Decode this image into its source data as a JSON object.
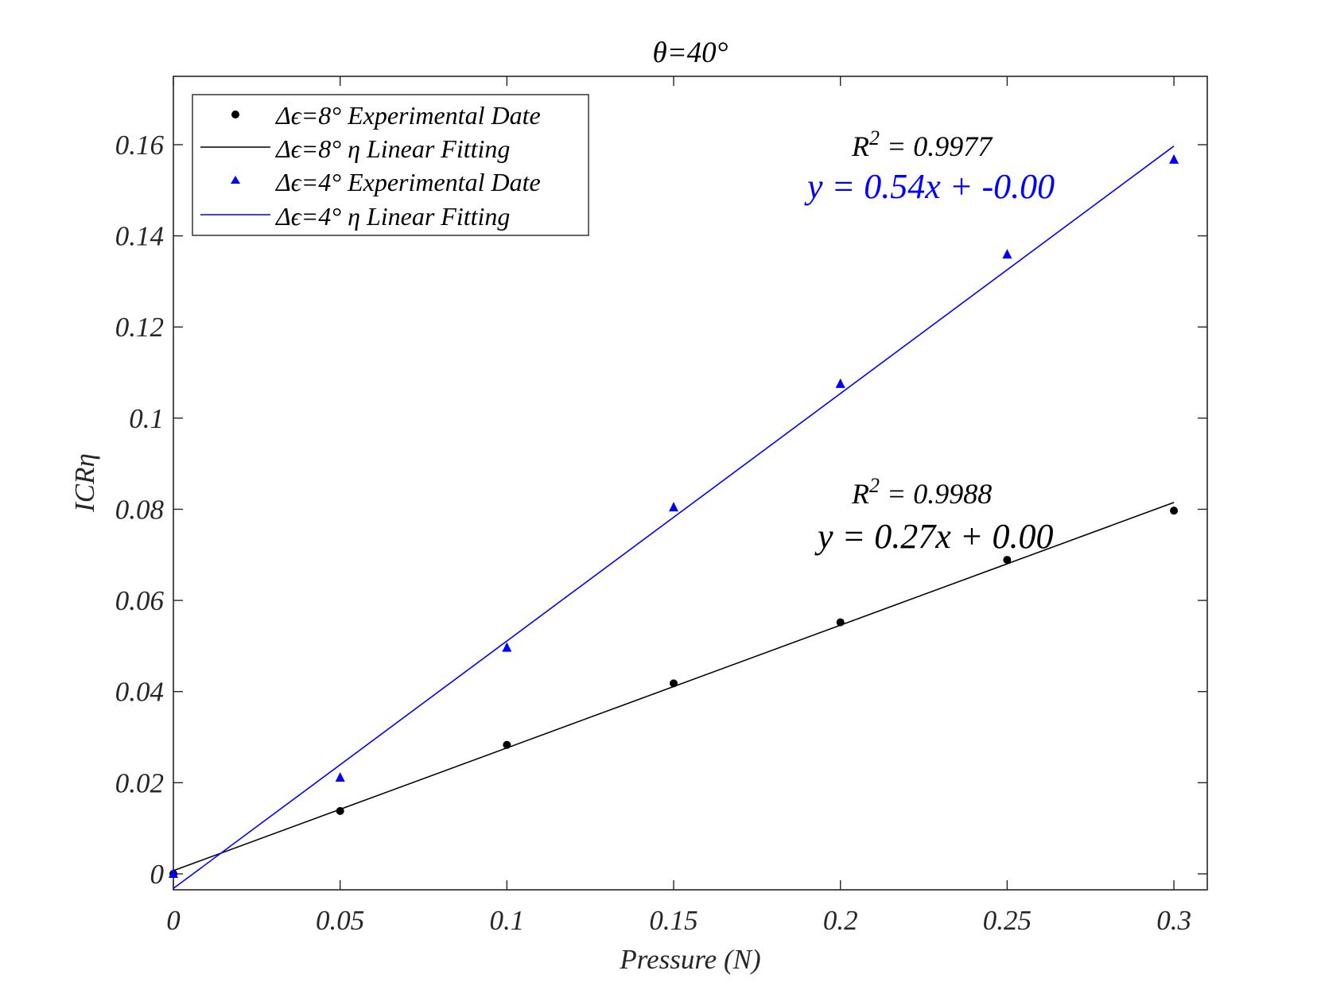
{
  "chart_data": {
    "type": "scatter",
    "title": "θ=40°",
    "xlabel": "Pressure (N)",
    "ylabel": "ICRη",
    "xlim": [
      0,
      0.31
    ],
    "ylim": [
      -0.0035,
      0.175
    ],
    "xticks": [
      0,
      0.05,
      0.1,
      0.15,
      0.2,
      0.25,
      0.3
    ],
    "xtick_labels": [
      "0",
      "0.05",
      "0.1",
      "0.15",
      "0.2",
      "0.25",
      "0.3"
    ],
    "yticks": [
      0,
      0.02,
      0.04,
      0.06,
      0.08,
      0.1,
      0.12,
      0.14,
      0.16
    ],
    "ytick_labels": [
      "0",
      "0.02",
      "0.04",
      "0.06",
      "0.08",
      "0.1",
      "0.12",
      "0.14",
      "0.16"
    ],
    "grid": false,
    "legend_position": "top-left",
    "series": [
      {
        "name": "Δϵ=8° Experimental Date",
        "kind": "scatter",
        "marker": "circle",
        "color": "#000000",
        "x": [
          0,
          0.05,
          0.1,
          0.15,
          0.2,
          0.25,
          0.3
        ],
        "y": [
          0.0,
          0.0138,
          0.0283,
          0.0418,
          0.0552,
          0.0689,
          0.0797
        ]
      },
      {
        "name": "Δϵ=8° η Linear Fitting",
        "kind": "line",
        "color": "#000000",
        "x": [
          0,
          0.3
        ],
        "y": [
          0.0007,
          0.0815
        ]
      },
      {
        "name": "Δϵ=4° Experimental Date",
        "kind": "scatter",
        "marker": "triangle",
        "color": "#0000ff",
        "x": [
          0,
          0.05,
          0.1,
          0.15,
          0.2,
          0.25,
          0.3
        ],
        "y": [
          0.0,
          0.0211,
          0.0496,
          0.0804,
          0.1075,
          0.1359,
          0.1567
        ]
      },
      {
        "name": "Δϵ=4° η Linear Fitting",
        "kind": "line",
        "color": "#0000ff",
        "x": [
          0,
          0.3
        ],
        "y": [
          -0.0032,
          0.1597
        ]
      }
    ],
    "annotations": [
      {
        "id": "r2_blue",
        "text": "R² = 0.9977",
        "color": "#000000"
      },
      {
        "id": "eq_blue",
        "text": "y = 0.54x + -0.00",
        "color": "#0000ff"
      },
      {
        "id": "r2_black",
        "text": "R² = 0.9988",
        "color": "#000000"
      },
      {
        "id": "eq_black",
        "text": "y = 0.27x + 0.00",
        "color": "#000000"
      }
    ]
  }
}
